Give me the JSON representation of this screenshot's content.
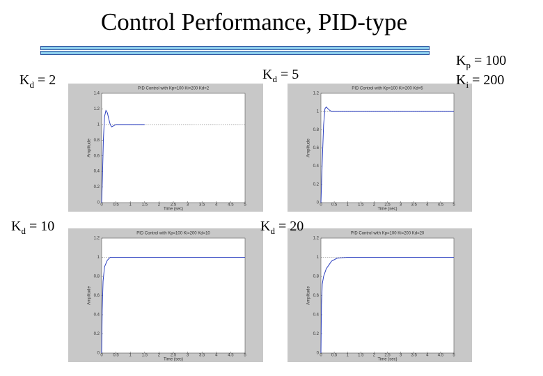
{
  "title": "Control Performance, PID-type",
  "gains": [
    {
      "base": "K",
      "sub": "p",
      "text": "= 100"
    },
    {
      "base": "K",
      "sub": "i",
      "text": "= 200"
    }
  ],
  "labels": [
    {
      "base": "K",
      "sub": "d",
      "text": "= 2"
    },
    {
      "base": "K",
      "sub": "d",
      "text": "= 5"
    },
    {
      "base": "K",
      "sub": "d",
      "text": "= 10"
    },
    {
      "base": "K",
      "sub": "d",
      "text": "= 20"
    }
  ],
  "chart_data": [
    {
      "type": "line",
      "title": "PID Control with Kp=100 Ki=200 Kd=2",
      "x_label": "Time (sec)",
      "y_label": "Amplitude",
      "xlim": [
        0,
        5
      ],
      "xticks": [
        0,
        0.5,
        1,
        1.5,
        2,
        2.5,
        3,
        3.5,
        4,
        4.5,
        5
      ],
      "ylim": [
        0,
        1.4
      ],
      "yticks": [
        0,
        0.2,
        0.4,
        0.6,
        0.8,
        1,
        1.2,
        1.4
      ],
      "reference_line": 1,
      "series": [
        {
          "color": "#2b3fbf",
          "x": [
            0,
            0.03,
            0.06,
            0.1,
            0.15,
            0.2,
            0.25,
            0.3,
            0.35,
            0.4,
            0.5,
            0.6,
            0.8,
            1,
            1.5
          ],
          "values": [
            0,
            0.35,
            0.8,
            1.1,
            1.18,
            1.15,
            1.07,
            1.0,
            0.97,
            0.98,
            1.0,
            1.0,
            1.0,
            1.0,
            1.0
          ]
        }
      ]
    },
    {
      "type": "line",
      "title": "PID Control with Kp=100 Ki=200 Kd=5",
      "x_label": "Time (sec)",
      "y_label": "Amplitude",
      "xlim": [
        0,
        5
      ],
      "xticks": [
        0,
        0.5,
        1,
        1.5,
        2,
        2.5,
        3,
        3.5,
        4,
        4.5,
        5
      ],
      "ylim": [
        0,
        1.2
      ],
      "yticks": [
        0,
        0.2,
        0.4,
        0.6,
        0.8,
        1,
        1.2
      ],
      "reference_line": 1,
      "series": [
        {
          "color": "#2b3fbf",
          "x": [
            0,
            0.05,
            0.1,
            0.15,
            0.2,
            0.3,
            0.4,
            0.6,
            1,
            2,
            3,
            4,
            5
          ],
          "values": [
            0,
            0.45,
            0.85,
            1.03,
            1.05,
            1.02,
            1.0,
            1.0,
            1.0,
            1.0,
            1.0,
            1.0,
            1.0
          ]
        }
      ]
    },
    {
      "type": "line",
      "title": "PID Control with Kp=100 Ki=200 Kd=10",
      "x_label": "Time (sec)",
      "y_label": "Amplitude",
      "xlim": [
        0,
        5
      ],
      "xticks": [
        0,
        0.5,
        1,
        1.5,
        2,
        2.5,
        3,
        3.5,
        4,
        4.5,
        5
      ],
      "ylim": [
        0,
        1.2
      ],
      "yticks": [
        0,
        0.2,
        0.4,
        0.6,
        0.8,
        1,
        1.2
      ],
      "reference_line": 1,
      "series": [
        {
          "color": "#2b3fbf",
          "x": [
            0,
            0.02,
            0.05,
            0.1,
            0.2,
            0.3,
            0.5,
            1,
            2,
            3,
            4,
            5
          ],
          "values": [
            0,
            0.45,
            0.75,
            0.9,
            0.97,
            1.0,
            1.0,
            1.0,
            1.0,
            1.0,
            1.0,
            1.0
          ]
        }
      ]
    },
    {
      "type": "line",
      "title": "PID Control with Kp=100 Ki=200 Kd=20",
      "x_label": "Time (sec)",
      "y_label": "Amplitude",
      "xlim": [
        0,
        5
      ],
      "xticks": [
        0,
        0.5,
        1,
        1.5,
        2,
        2.5,
        3,
        3.5,
        4,
        4.5,
        5
      ],
      "ylim": [
        0,
        1.2
      ],
      "yticks": [
        0,
        0.2,
        0.4,
        0.6,
        0.8,
        1,
        1.2
      ],
      "reference_line": 1,
      "series": [
        {
          "color": "#2b3fbf",
          "x": [
            0,
            0.02,
            0.05,
            0.1,
            0.2,
            0.4,
            0.6,
            1,
            2,
            3,
            4,
            5
          ],
          "values": [
            0,
            0.5,
            0.72,
            0.8,
            0.88,
            0.96,
            0.99,
            1.0,
            1.0,
            1.0,
            1.0,
            1.0
          ]
        }
      ]
    }
  ]
}
